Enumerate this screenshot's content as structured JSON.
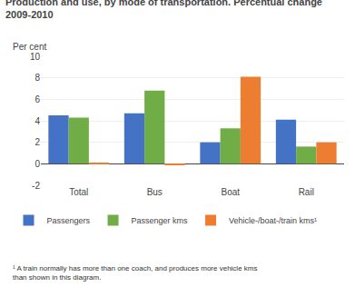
{
  "chart_data": {
    "type": "bar",
    "title": "Production and use, by mode of transportation. Percentual change",
    "subtitle": "2009-2010",
    "ylabel": "Per cent",
    "categories": [
      "Total",
      "Bus",
      "Boat",
      "Rail"
    ],
    "series": [
      {
        "name": "Passengers",
        "color": "#4472c4",
        "values": [
          4.5,
          4.7,
          2.0,
          4.1
        ]
      },
      {
        "name": "Passenger kms",
        "color": "#70ad47",
        "values": [
          4.3,
          6.8,
          3.3,
          1.6
        ]
      },
      {
        "name": "Vehicle-/boat-/train kms¹",
        "color": "#ed7d31",
        "values": [
          0.1,
          -0.1,
          8.1,
          2.0
        ]
      }
    ],
    "ylim": [
      -2,
      10
    ],
    "yticks": [
      -2,
      0,
      2,
      4,
      6,
      8,
      10
    ],
    "grid": true,
    "legend": "bottom",
    "annotations": [
      "¹ A train normally has more than one coach, and produces more vehicle kms\nthan shown in this diagram."
    ]
  }
}
